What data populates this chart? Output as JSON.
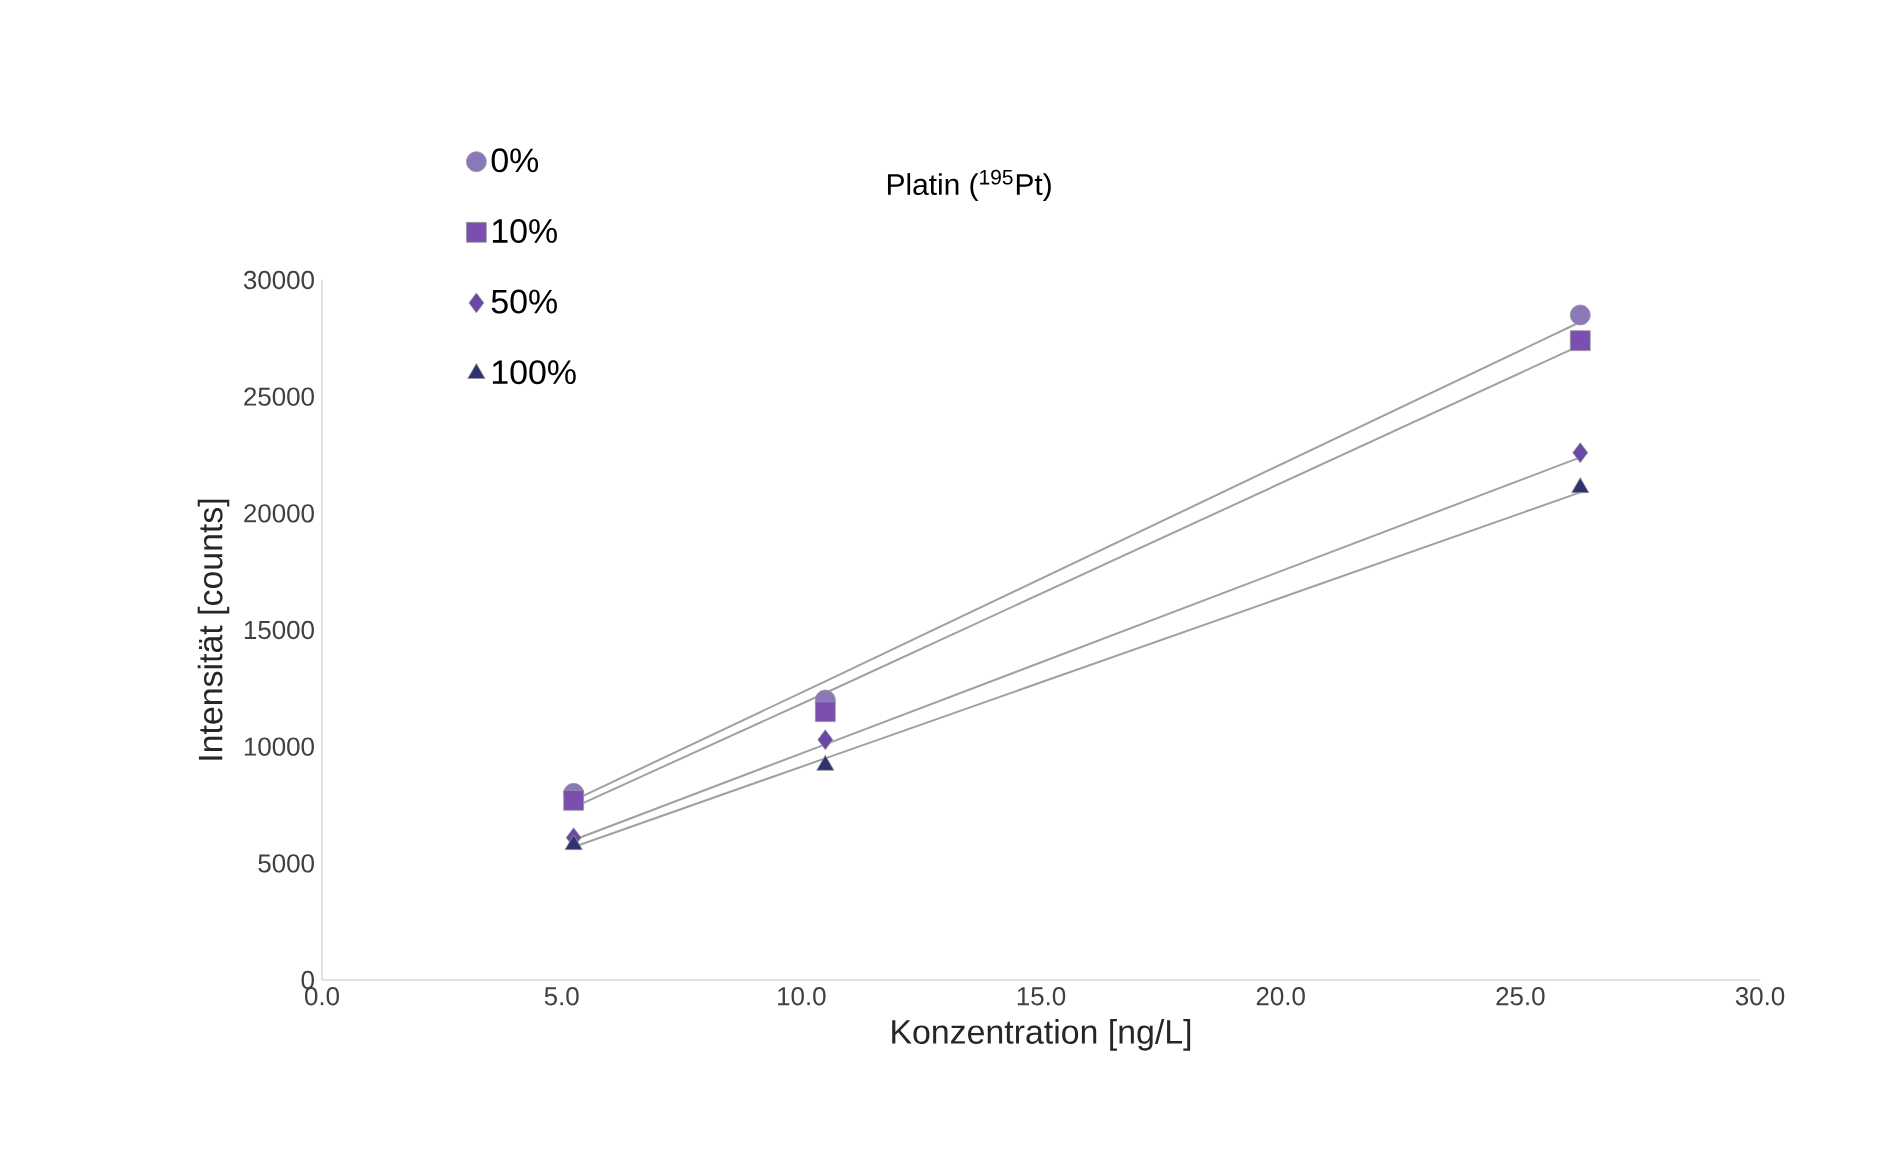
{
  "chart_data": {
    "type": "scatter",
    "title": "Platin ($^{195}$Pt)",
    "xlabel": "Konzentration [ng/L]",
    "ylabel": "Intensität [counts]",
    "x": [
      5.25,
      10.5,
      26.25
    ],
    "series": [
      {
        "name": "0%",
        "color": "#8a78b8",
        "marker": "circle",
        "values": [
          8000,
          12000,
          28500
        ]
      },
      {
        "name": "10%",
        "color": "#7b4fb0",
        "marker": "square",
        "values": [
          7700,
          11500,
          27400
        ]
      },
      {
        "name": "50%",
        "color": "#6a48a8",
        "marker": "diamond",
        "values": [
          6100,
          10300,
          22600
        ]
      },
      {
        "name": "100%",
        "color": "#2e3370",
        "marker": "triangle",
        "values": [
          5800,
          9200,
          21100
        ]
      },
      {
        "type": "line",
        "color": "#a0a0a0",
        "values": [
          7700,
          12800,
          28200
        ]
      },
      {
        "type": "line",
        "color": "#a0a0a0",
        "values": [
          7400,
          12300,
          27200
        ]
      },
      {
        "type": "line",
        "color": "#a0a0a0",
        "values": [
          6000,
          10100,
          22400
        ]
      },
      {
        "type": "line",
        "color": "#a0a0a0",
        "values": [
          5700,
          9500,
          20900
        ]
      }
    ],
    "xlim": [
      0,
      30
    ],
    "ylim": [
      0,
      30000
    ],
    "xticks": [
      {
        "value": 0,
        "label": "0.0"
      },
      {
        "value": 5,
        "label": "5.0"
      },
      {
        "value": 10,
        "label": "10.0"
      },
      {
        "value": 15,
        "label": "15.0"
      },
      {
        "value": 20,
        "label": "20.0"
      },
      {
        "value": 25,
        "label": "25.0"
      },
      {
        "value": 30,
        "label": "30.0"
      }
    ],
    "yticks": [
      0,
      5000,
      10000,
      15000,
      20000,
      25000,
      30000
    ],
    "grid": false,
    "legend": "top left"
  }
}
